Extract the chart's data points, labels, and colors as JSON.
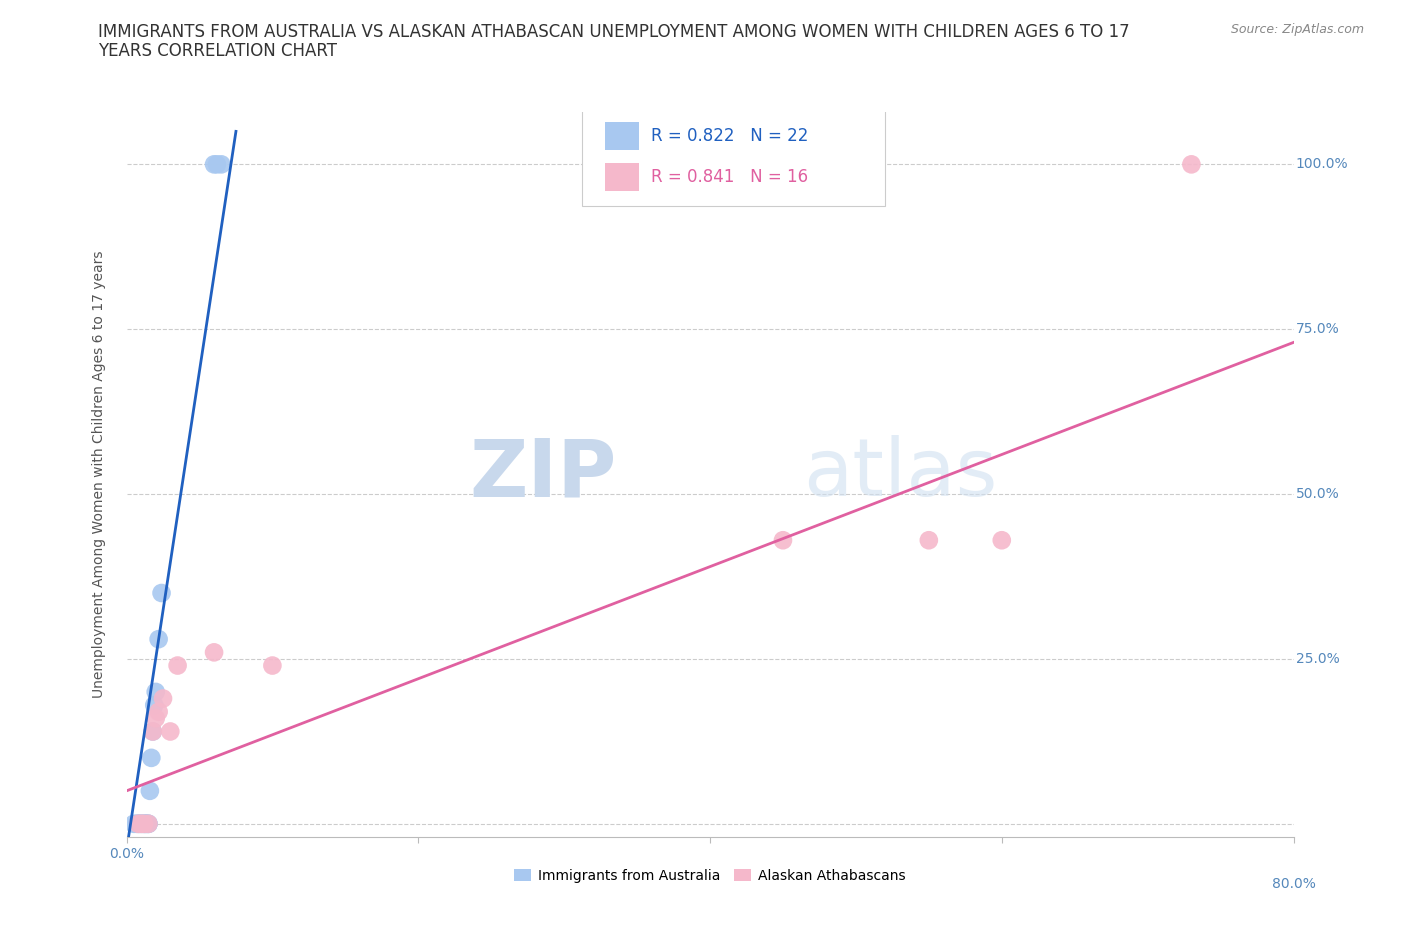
{
  "title_line1": "IMMIGRANTS FROM AUSTRALIA VS ALASKAN ATHABASCAN UNEMPLOYMENT AMONG WOMEN WITH CHILDREN AGES 6 TO 17",
  "title_line2": "YEARS CORRELATION CHART",
  "source": "Source: ZipAtlas.com",
  "ylabel_label": "Unemployment Among Women with Children Ages 6 to 17 years",
  "xlim": [
    0,
    0.8
  ],
  "ylim": [
    -0.02,
    1.08
  ],
  "blue_scatter_x": [
    0.005,
    0.007,
    0.008,
    0.009,
    0.01,
    0.011,
    0.012,
    0.013,
    0.013,
    0.014,
    0.015,
    0.015,
    0.016,
    0.017,
    0.018,
    0.019,
    0.02,
    0.022,
    0.024,
    0.06,
    0.062,
    0.065
  ],
  "blue_scatter_y": [
    0.0,
    0.0,
    0.0,
    0.0,
    0.0,
    0.0,
    0.0,
    0.0,
    0.0,
    0.0,
    0.0,
    0.0,
    0.05,
    0.1,
    0.14,
    0.18,
    0.2,
    0.28,
    0.35,
    1.0,
    1.0,
    1.0
  ],
  "pink_scatter_x": [
    0.008,
    0.01,
    0.012,
    0.015,
    0.018,
    0.02,
    0.022,
    0.025,
    0.03,
    0.035,
    0.06,
    0.1,
    0.45,
    0.55,
    0.6,
    0.73
  ],
  "pink_scatter_y": [
    0.0,
    0.0,
    0.0,
    0.0,
    0.14,
    0.16,
    0.17,
    0.19,
    0.14,
    0.24,
    0.26,
    0.24,
    0.43,
    0.43,
    0.43,
    1.0
  ],
  "blue_line_x": [
    0.0,
    0.075
  ],
  "blue_line_y": [
    -0.04,
    1.05
  ],
  "pink_line_x": [
    0.0,
    0.8
  ],
  "pink_line_y": [
    0.05,
    0.73
  ],
  "blue_dot_color": "#a8c8f0",
  "pink_dot_color": "#f5b8cb",
  "blue_line_color": "#2060c0",
  "pink_line_color": "#e060a0",
  "legend_r_blue": "R = 0.822",
  "legend_n_blue": "N = 22",
  "legend_r_pink": "R = 0.841",
  "legend_n_pink": "N = 16",
  "watermark_zip": "ZIP",
  "watermark_atlas": "atlas",
  "title_fontsize": 12,
  "axis_label_fontsize": 10,
  "tick_fontsize": 10,
  "source_fontsize": 9,
  "legend_fontsize": 12
}
